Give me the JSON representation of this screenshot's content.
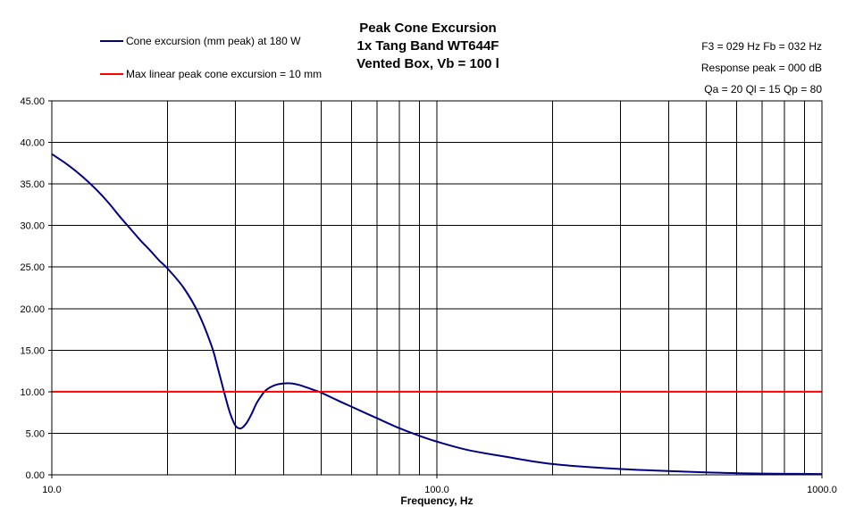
{
  "chart_data": {
    "type": "line",
    "title_lines": [
      "Peak Cone Excursion",
      "1x Tang Band WT644F",
      "Vented Box, Vb = 100 l"
    ],
    "info_lines": [
      "F3 = 029 Hz  Fb = 032 Hz",
      "Response peak = 000 dB",
      "Qa = 20  Ql = 15  Qp = 80"
    ],
    "xlabel": "Frequency, Hz",
    "ylabel": "",
    "x_scale": "log",
    "xlim": [
      10,
      1000
    ],
    "ylim": [
      0,
      45
    ],
    "grid": true,
    "legend_position": "top-left",
    "x_tick_labels": [
      "10.0",
      "100.0",
      "1000.0"
    ],
    "y_tick_labels": [
      "0.00",
      "5.00",
      "10.00",
      "15.00",
      "20.00",
      "25.00",
      "30.00",
      "35.00",
      "40.00",
      "45.00"
    ],
    "series": [
      {
        "name": "Cone excursion (mm peak) at 180 W",
        "color": "#000080",
        "x": [
          10,
          11,
          12,
          13,
          14,
          15,
          16,
          17,
          18,
          19,
          20,
          22,
          24,
          26,
          27,
          28,
          29,
          30,
          31,
          32,
          33,
          34,
          35,
          36,
          38,
          40,
          42,
          44,
          46,
          48,
          50,
          55,
          60,
          70,
          80,
          90,
          100,
          120,
          150,
          200,
          300,
          500,
          700,
          1000
        ],
        "y": [
          38.6,
          37.3,
          35.9,
          34.4,
          32.8,
          31.1,
          29.6,
          28.2,
          27.0,
          25.8,
          24.8,
          22.5,
          19.5,
          15.5,
          12.8,
          10.0,
          7.5,
          5.9,
          5.6,
          6.2,
          7.3,
          8.6,
          9.5,
          10.2,
          10.8,
          11.0,
          11.0,
          10.8,
          10.5,
          10.2,
          9.9,
          9.0,
          8.2,
          6.8,
          5.6,
          4.7,
          4.0,
          3.0,
          2.2,
          1.3,
          0.7,
          0.3,
          0.15,
          0.1
        ]
      },
      {
        "name": "Max linear peak cone excursion = 10 mm",
        "color": "#ff0000",
        "x": [
          10,
          1000
        ],
        "y": [
          10,
          10
        ]
      }
    ]
  }
}
